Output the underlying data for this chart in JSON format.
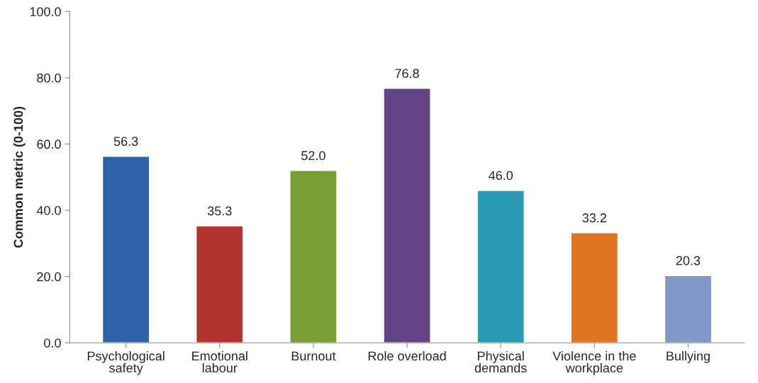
{
  "chart_data": {
    "type": "bar",
    "ylabel": "Common metric (0-100)",
    "categories": [
      "Psychological\nsafety",
      "Emotional\nlabour",
      "Burnout",
      "Role overload",
      "Physical\ndemands",
      "Violence in the\nworkplace",
      "Bullying"
    ],
    "values": [
      56.3,
      35.3,
      52.0,
      76.8,
      46.0,
      33.2,
      20.3
    ],
    "colors": [
      "#2f63a8",
      "#b0332f",
      "#7a9e36",
      "#634485",
      "#2b9ab3",
      "#e07521",
      "#7f98c8"
    ],
    "value_labels": [
      "56.3",
      "35.3",
      "52.0",
      "76.8",
      "46.0",
      "33.2",
      "20.3"
    ],
    "ylim": [
      0,
      100
    ],
    "yticks": [
      {
        "value": 0,
        "label": "0.0"
      },
      {
        "value": 20,
        "label": "20.0"
      },
      {
        "value": 40,
        "label": "40.0"
      },
      {
        "value": 60,
        "label": "60.0"
      },
      {
        "value": 80,
        "label": "80.0"
      },
      {
        "value": 100,
        "label": "100.0"
      }
    ],
    "grid": false
  }
}
